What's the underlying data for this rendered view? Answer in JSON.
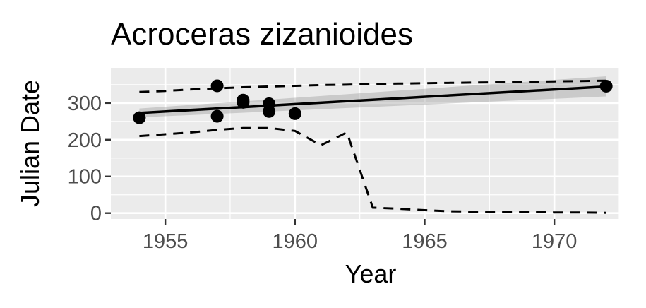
{
  "chart_data": {
    "type": "scatter",
    "title": "Acroceras zizanioides",
    "xlabel": "Year",
    "ylabel": "Julian Date",
    "xlim": [
      1952.9,
      1972.5
    ],
    "ylim": [
      -16,
      396
    ],
    "x_ticks": [
      1955,
      1960,
      1965,
      1970
    ],
    "y_ticks": [
      0,
      100,
      200,
      300
    ],
    "grid": true,
    "points": [
      {
        "x": 1954,
        "y": 260
      },
      {
        "x": 1957,
        "y": 347
      },
      {
        "x": 1957,
        "y": 264
      },
      {
        "x": 1958,
        "y": 308
      },
      {
        "x": 1958,
        "y": 302
      },
      {
        "x": 1959,
        "y": 298
      },
      {
        "x": 1959,
        "y": 277
      },
      {
        "x": 1960,
        "y": 271
      },
      {
        "x": 1972,
        "y": 346
      }
    ],
    "trend_line": {
      "x": [
        1954,
        1972
      ],
      "y": [
        273,
        345
      ]
    },
    "confidence_band": {
      "x": [
        1954,
        1972
      ],
      "upper": [
        285,
        373
      ],
      "lower": [
        261,
        318
      ]
    },
    "upper_bound": {
      "x": [
        1954,
        1955,
        1956,
        1957,
        1958,
        1959,
        1960,
        1961,
        1962,
        1963,
        1964,
        1965,
        1966,
        1967,
        1968,
        1969,
        1970,
        1971,
        1972
      ],
      "y": [
        330,
        333,
        337,
        340,
        343,
        345,
        347,
        349,
        350,
        352,
        353,
        354,
        355,
        356,
        357,
        358,
        359,
        360,
        361
      ]
    },
    "lower_bound": {
      "x": [
        1954,
        1955,
        1956,
        1957,
        1958,
        1959,
        1960,
        1961,
        1962,
        1963,
        1964,
        1965,
        1966,
        1967,
        1968,
        1969,
        1970,
        1971,
        1972
      ],
      "y": [
        210,
        215,
        220,
        227,
        232,
        232,
        224,
        185,
        220,
        15,
        12,
        8,
        5,
        4,
        3,
        3,
        2,
        2,
        1
      ]
    }
  }
}
